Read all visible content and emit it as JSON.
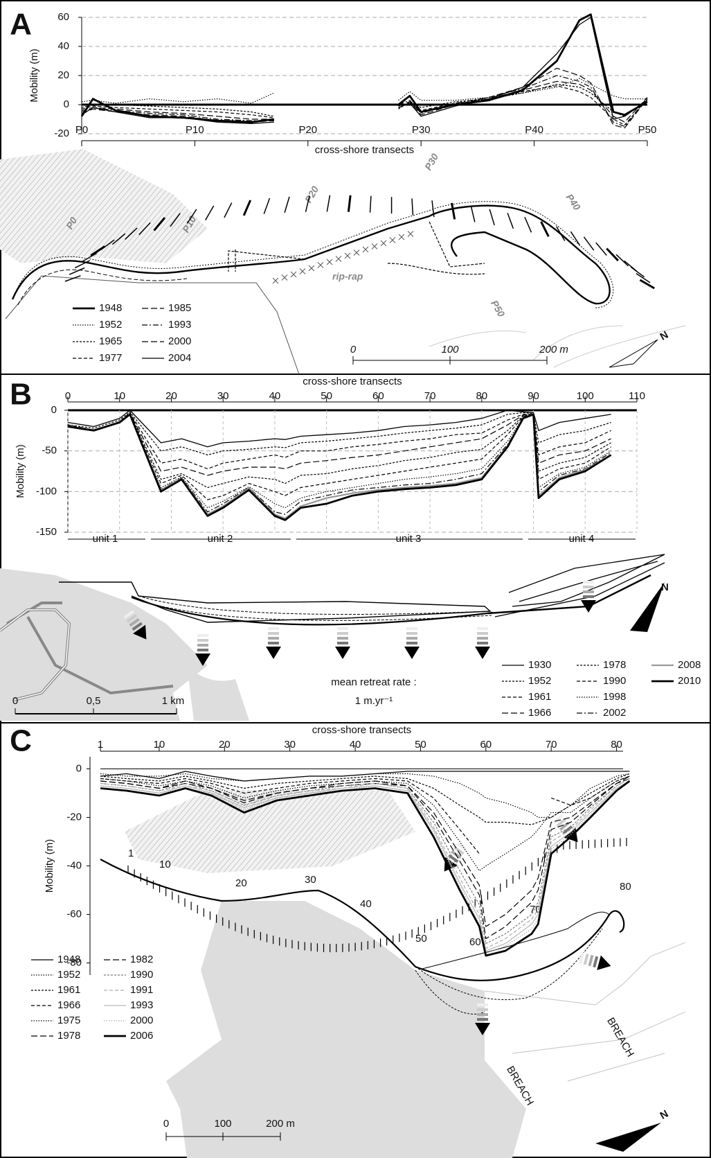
{
  "chart_data": [
    {
      "type": "line",
      "panel": "A",
      "ylabel": "Mobility (m)",
      "xlabel": "cross-shore transects",
      "x_axis": "bottom",
      "grid": true,
      "zero_line": true,
      "xlim": [
        0,
        50
      ],
      "ylim": [
        -20,
        60
      ],
      "xticks": [
        {
          "value": 0,
          "label": "P0"
        },
        {
          "value": 10,
          "label": "P10"
        },
        {
          "value": 20,
          "label": "P20"
        },
        {
          "value": 30,
          "label": "P30"
        },
        {
          "value": 40,
          "label": "P40"
        },
        {
          "value": 50,
          "label": "P50"
        }
      ],
      "yticks": [
        -20,
        0,
        20,
        40,
        60
      ],
      "x": [
        0,
        1,
        3,
        6,
        9,
        12,
        15,
        17,
        20,
        28,
        29,
        30,
        33,
        36,
        39,
        42,
        44,
        45,
        47,
        48,
        50
      ],
      "series": [
        {
          "name": "1948",
          "color": "#000000",
          "style": "bold",
          "values": [
            -8,
            4,
            -4,
            -8,
            -9,
            -11,
            -12,
            -10,
            null,
            0,
            6,
            -5,
            0,
            3,
            10,
            30,
            58,
            62,
            -5,
            -7,
            2
          ]
        },
        {
          "name": "1952",
          "color": "#000000",
          "style": "dotted",
          "values": [
            2,
            3,
            1,
            4,
            2,
            4,
            1,
            8,
            null,
            3,
            9,
            3,
            3,
            5,
            8,
            12,
            18,
            14,
            6,
            4,
            4
          ]
        },
        {
          "name": "1965",
          "color": "#000000",
          "style": "shortdash",
          "values": [
            -2,
            0,
            0,
            -1,
            -2,
            -3,
            -5,
            -8,
            null,
            -3,
            2,
            -2,
            2,
            4,
            8,
            14,
            12,
            8,
            -5,
            -8,
            3
          ]
        },
        {
          "name": "1977",
          "color": "#000000",
          "style": "dashed",
          "values": [
            -3,
            -1,
            -2,
            -3,
            -4,
            -5,
            -7,
            -9,
            null,
            -2,
            1,
            -4,
            1,
            3,
            9,
            13,
            9,
            5,
            -10,
            -14,
            4
          ]
        },
        {
          "name": "1985",
          "color": "#000000",
          "style": "longdash",
          "values": [
            -4,
            -2,
            -3,
            -5,
            -6,
            -8,
            -10,
            -10,
            null,
            -1,
            2,
            -5,
            0,
            4,
            10,
            16,
            14,
            10,
            -8,
            -12,
            5
          ]
        },
        {
          "name": "1993",
          "color": "#000000",
          "style": "dashdot",
          "values": [
            -5,
            -2,
            -4,
            -6,
            -7,
            -10,
            -11,
            -11,
            null,
            0,
            3,
            -6,
            1,
            5,
            11,
            20,
            16,
            12,
            -12,
            -15,
            5
          ]
        },
        {
          "name": "2000",
          "color": "#000000",
          "style": "longdash",
          "values": [
            -6,
            -3,
            -5,
            -7,
            -8,
            -11,
            -12,
            -11,
            null,
            -1,
            2,
            -7,
            0,
            5,
            12,
            25,
            20,
            15,
            -14,
            -16,
            4
          ]
        },
        {
          "name": "2004",
          "color": "#000000",
          "style": "solid",
          "values": [
            -7,
            -2,
            -5,
            -9,
            -9,
            -12,
            -13,
            -12,
            null,
            -2,
            1,
            -8,
            -1,
            4,
            12,
            35,
            55,
            60,
            -10,
            -8,
            3
          ]
        }
      ],
      "map_labels": [
        "P0",
        "P10",
        "P20",
        "P30",
        "P40",
        "P50",
        "rip-rap",
        "0",
        "100",
        "200 m",
        "N"
      ]
    },
    {
      "type": "line",
      "panel": "B",
      "ylabel": "Mobility (m)",
      "xlabel": "cross-shore transects",
      "x_axis": "top",
      "grid": true,
      "zero_line": true,
      "xlim": [
        0,
        110
      ],
      "ylim": [
        -150,
        0
      ],
      "xticks": [
        0,
        10,
        20,
        30,
        40,
        50,
        60,
        70,
        80,
        90,
        100,
        110
      ],
      "yticks": [
        -150,
        -100,
        -50,
        0
      ],
      "x": [
        0,
        5,
        10,
        12,
        18,
        22,
        27,
        30,
        35,
        40,
        42,
        45,
        50,
        55,
        60,
        65,
        70,
        75,
        80,
        85,
        88,
        90,
        91,
        95,
        100,
        105
      ],
      "series": [
        {
          "name": "1930",
          "color": "#000000",
          "style": "solid",
          "values": [
            -15,
            -20,
            -10,
            0,
            -40,
            -35,
            -45,
            -40,
            -38,
            -35,
            -36,
            -32,
            -30,
            -28,
            -25,
            -20,
            -18,
            -15,
            -10,
            0,
            -2,
            -3,
            -25,
            -15,
            -10,
            -5
          ]
        },
        {
          "name": "1952",
          "color": "#000000",
          "style": "shortdash",
          "values": [
            -18,
            -22,
            -12,
            -2,
            -50,
            -45,
            -55,
            -50,
            -48,
            -45,
            -46,
            -40,
            -38,
            -35,
            -32,
            -28,
            -25,
            -22,
            -18,
            -5,
            -3,
            -4,
            -40,
            -30,
            -25,
            -15
          ]
        },
        {
          "name": "1961",
          "color": "#000000",
          "style": "dashed",
          "values": [
            -18,
            -24,
            -14,
            -3,
            -65,
            -60,
            -72,
            -65,
            -60,
            -55,
            -58,
            -50,
            -50,
            -45,
            -42,
            -38,
            -35,
            -30,
            -28,
            -12,
            -5,
            -5,
            -55,
            -45,
            -40,
            -25
          ]
        },
        {
          "name": "1966",
          "color": "#000000",
          "style": "longdash",
          "values": [
            -20,
            -24,
            -15,
            -4,
            -75,
            -70,
            -80,
            -75,
            -70,
            -70,
            -72,
            -65,
            -62,
            -58,
            -55,
            -50,
            -45,
            -40,
            -35,
            -18,
            -6,
            -5,
            -65,
            -55,
            -50,
            -35
          ]
        },
        {
          "name": "1978",
          "color": "#000000",
          "style": "shortdash",
          "values": [
            -20,
            -25,
            -15,
            -4,
            -85,
            -78,
            -95,
            -90,
            -82,
            -85,
            -90,
            -80,
            -78,
            -72,
            -68,
            -62,
            -58,
            -52,
            -48,
            -25,
            -7,
            -5,
            -75,
            -65,
            -58,
            -40
          ]
        },
        {
          "name": "1990",
          "color": "#000000",
          "style": "dashed",
          "values": [
            -20,
            -25,
            -15,
            -5,
            -90,
            -80,
            -110,
            -105,
            -90,
            -100,
            -105,
            -95,
            -90,
            -85,
            -80,
            -75,
            -70,
            -65,
            -60,
            -30,
            -8,
            -5,
            -85,
            -72,
            -65,
            -45
          ]
        },
        {
          "name": "1998",
          "color": "#000000",
          "style": "dotted",
          "values": [
            -20,
            -25,
            -15,
            -5,
            -95,
            -82,
            -120,
            -112,
            -94,
            -115,
            -120,
            -108,
            -100,
            -95,
            -90,
            -85,
            -82,
            -78,
            -72,
            -38,
            -9,
            -5,
            -95,
            -78,
            -70,
            -50
          ]
        },
        {
          "name": "2002",
          "color": "#000000",
          "style": "dashdot",
          "values": [
            -20,
            -25,
            -15,
            -5,
            -97,
            -83,
            -125,
            -115,
            -95,
            -125,
            -128,
            -112,
            -105,
            -98,
            -95,
            -92,
            -90,
            -85,
            -78,
            -42,
            -10,
            -5,
            -100,
            -80,
            -72,
            -52
          ]
        },
        {
          "name": "2008",
          "color": "#999999",
          "style": "gray",
          "values": [
            -20,
            -24,
            -15,
            -5,
            -98,
            -84,
            -128,
            -118,
            -96,
            -128,
            -133,
            -118,
            -108,
            -102,
            -98,
            -95,
            -93,
            -90,
            -83,
            -44,
            -10,
            -5,
            -105,
            -83,
            -73,
            -55
          ]
        },
        {
          "name": "2010",
          "color": "#000000",
          "style": "bold",
          "values": [
            -20,
            -25,
            -15,
            -5,
            -100,
            -85,
            -130,
            -120,
            -98,
            -130,
            -135,
            -120,
            -115,
            -105,
            -100,
            -97,
            -95,
            -92,
            -85,
            -45,
            -10,
            -5,
            -108,
            -85,
            -75,
            -55
          ]
        }
      ],
      "units": [
        "unit 1",
        "unit 2",
        "unit 3",
        "unit 4"
      ],
      "map_labels": [
        "mean retreat rate :",
        "1 m.yr⁻¹",
        "0",
        "0,5",
        "1 km",
        "N"
      ]
    },
    {
      "type": "line",
      "panel": "C",
      "ylabel": "Mobility (m)",
      "xlabel": "cross-shore transects",
      "x_axis": "top",
      "grid": false,
      "zero_line": true,
      "xlim": [
        1,
        81
      ],
      "ylim": [
        -85,
        5
      ],
      "xticks": [
        1,
        10,
        20,
        30,
        40,
        50,
        60,
        70,
        80
      ],
      "yticks": [
        -80,
        -60,
        -40,
        -20,
        0
      ],
      "x": [
        1,
        5,
        10,
        14,
        18,
        23,
        28,
        33,
        38,
        43,
        48,
        52,
        56,
        59,
        60,
        63,
        67,
        68,
        70,
        73,
        76,
        80,
        82
      ],
      "series": [
        {
          "name": "1948",
          "color": "#000000",
          "style": "solid",
          "values": [
            -3,
            -2,
            -4,
            -1,
            -3,
            -5,
            -4,
            -3,
            -3,
            -2,
            -1,
            -1,
            -1,
            -1,
            -1,
            -1,
            -1,
            -1,
            -1,
            -1,
            -1,
            -1,
            -1
          ]
        },
        {
          "name": "1952",
          "color": "#000000",
          "style": "dotted",
          "values": [
            -2,
            -3,
            -3,
            -2,
            -4,
            -5,
            -4,
            -3,
            -3,
            -2,
            -2,
            -3,
            -6,
            -10,
            -12,
            -14,
            -18,
            -20,
            -20,
            -15,
            -8,
            -3,
            -2
          ]
        },
        {
          "name": "1961",
          "color": "#000000",
          "style": "shortdash",
          "values": [
            -3,
            -4,
            -5,
            -3,
            -5,
            -8,
            -6,
            -5,
            -4,
            -3,
            -4,
            -8,
            -15,
            -20,
            -22,
            -22,
            -23,
            -22,
            -20,
            -15,
            -10,
            -4,
            -2
          ]
        },
        {
          "name": "1966",
          "color": "#000000",
          "style": "dashed",
          "values": [
            -4,
            -5,
            -6,
            -4,
            -6,
            -10,
            -8,
            -6,
            -5,
            -4,
            -5,
            -12,
            -25,
            -35,
            null,
            null,
            null,
            null,
            -12,
            -15,
            -12,
            -5,
            -3
          ]
        },
        {
          "name": "1975",
          "color": "#000000",
          "style": "dotted",
          "values": [
            -4,
            -5,
            -7,
            -5,
            -7,
            -12,
            -9,
            -7,
            -6,
            -5,
            -6,
            -15,
            -30,
            -42,
            -40,
            -35,
            -28,
            -25,
            -18,
            -18,
            -12,
            -5,
            -3
          ]
        },
        {
          "name": "1978",
          "color": "#000000",
          "style": "longdash",
          "values": [
            -5,
            -6,
            -8,
            -5,
            -8,
            -13,
            -10,
            -8,
            -6,
            -5,
            -7,
            -18,
            -35,
            -48,
            -65,
            -60,
            -50,
            -45,
            -22,
            -20,
            -14,
            -6,
            -3
          ]
        },
        {
          "name": "1982",
          "color": "#000000",
          "style": "longdash",
          "values": [
            -5,
            -6,
            -8,
            -6,
            -8,
            -14,
            -10,
            -8,
            -7,
            -6,
            -7,
            -20,
            -38,
            -52,
            -70,
            -65,
            -55,
            -50,
            -25,
            -22,
            -15,
            -6,
            -4
          ]
        },
        {
          "name": "1990",
          "color": "#777777",
          "style": "shortdash",
          "values": [
            -6,
            -7,
            -9,
            -6,
            -9,
            -15,
            -11,
            -9,
            -7,
            -6,
            -8,
            -22,
            -42,
            -56,
            -72,
            -68,
            -60,
            -55,
            -28,
            -24,
            -16,
            -7,
            -4
          ]
        },
        {
          "name": "1991",
          "color": "#aaaaaa",
          "style": "dashed",
          "values": [
            -6,
            -7,
            -9,
            -7,
            -9,
            -15,
            -11,
            -9,
            -8,
            -6,
            -8,
            -24,
            -45,
            -60,
            -74,
            -70,
            -62,
            -58,
            -30,
            -25,
            -17,
            -7,
            -4
          ]
        },
        {
          "name": "1993",
          "color": "#bbbbbb",
          "style": "solid",
          "values": [
            -7,
            -8,
            -10,
            -7,
            -10,
            -16,
            -12,
            -10,
            -8,
            -7,
            -9,
            -25,
            -47,
            -62,
            -75,
            -72,
            -64,
            -60,
            -32,
            -26,
            -18,
            -8,
            -5
          ]
        },
        {
          "name": "2000",
          "color": "#aaaaaa",
          "style": "dotted",
          "values": [
            -7,
            -8,
            -10,
            -8,
            -10,
            -17,
            -12,
            -10,
            -9,
            -7,
            -9,
            -26,
            -48,
            -64,
            -76,
            -73,
            -66,
            -62,
            -33,
            -27,
            -19,
            -8,
            -5
          ]
        },
        {
          "name": "2006",
          "color": "#000000",
          "style": "bold",
          "values": [
            -8,
            -9,
            -11,
            -8,
            -11,
            -18,
            -13,
            -11,
            -9,
            -8,
            -10,
            -28,
            -50,
            -65,
            -77,
            -75,
            -68,
            -64,
            -35,
            -28,
            -20,
            -9,
            -5
          ]
        }
      ],
      "map_labels": [
        "1",
        "10",
        "20",
        "30",
        "40",
        "50",
        "60",
        "70",
        "80",
        "BREACH",
        "BREACH",
        "0",
        "100",
        "200 m",
        "N"
      ]
    }
  ]
}
